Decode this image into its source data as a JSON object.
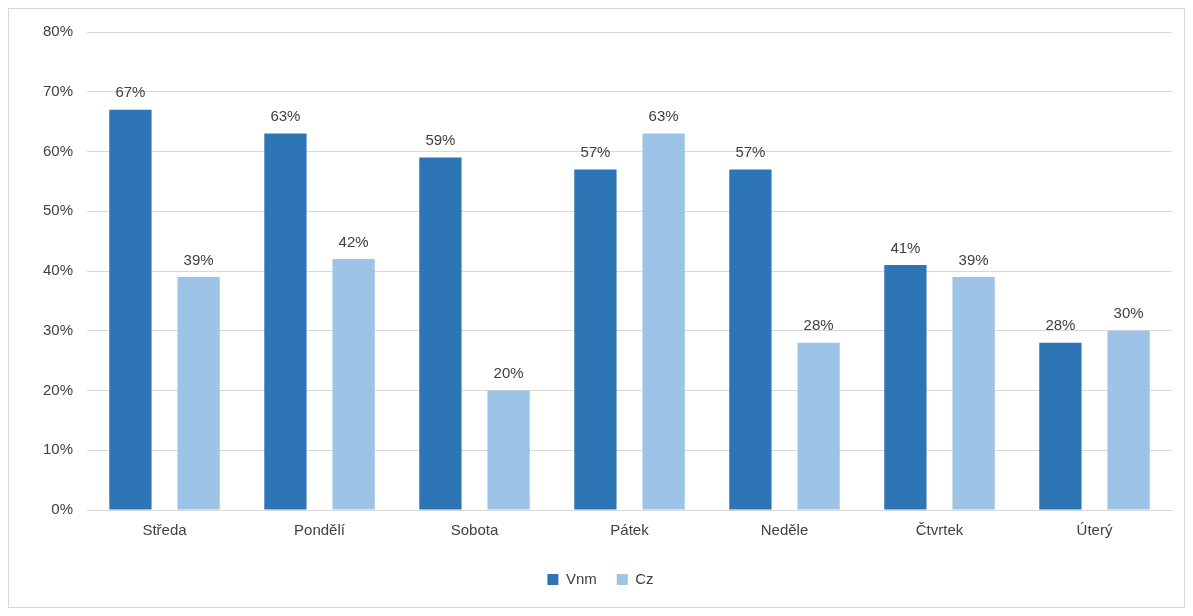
{
  "chart_data": {
    "type": "bar",
    "categories": [
      "Středa",
      "Pondělí",
      "Sobota",
      "Pátek",
      "Neděle",
      "Čtvrtek",
      "Úterý"
    ],
    "series": [
      {
        "name": "Vnm",
        "color": "#2e75b6",
        "values": [
          67,
          63,
          59,
          57,
          57,
          41,
          28
        ],
        "value_labels": [
          "67%",
          "63%",
          "59%",
          "57%",
          "57%",
          "41%",
          "28%"
        ]
      },
      {
        "name": "Cz",
        "color": "#9dc3e6",
        "values": [
          39,
          42,
          20,
          63,
          28,
          39,
          30
        ],
        "value_labels": [
          "39%",
          "42%",
          "20%",
          "63%",
          "28%",
          "39%",
          "30%"
        ]
      }
    ],
    "ylim": [
      0,
      80
    ],
    "yticks": [
      {
        "value": 0,
        "label": "0%"
      },
      {
        "value": 10,
        "label": "10%"
      },
      {
        "value": 20,
        "label": "20%"
      },
      {
        "value": 30,
        "label": "30%"
      },
      {
        "value": 40,
        "label": "40%"
      },
      {
        "value": 50,
        "label": "50%"
      },
      {
        "value": 60,
        "label": "60%"
      },
      {
        "value": 70,
        "label": "70%"
      },
      {
        "value": 80,
        "label": "80%"
      }
    ],
    "grid": "y",
    "legend": "bottom"
  }
}
